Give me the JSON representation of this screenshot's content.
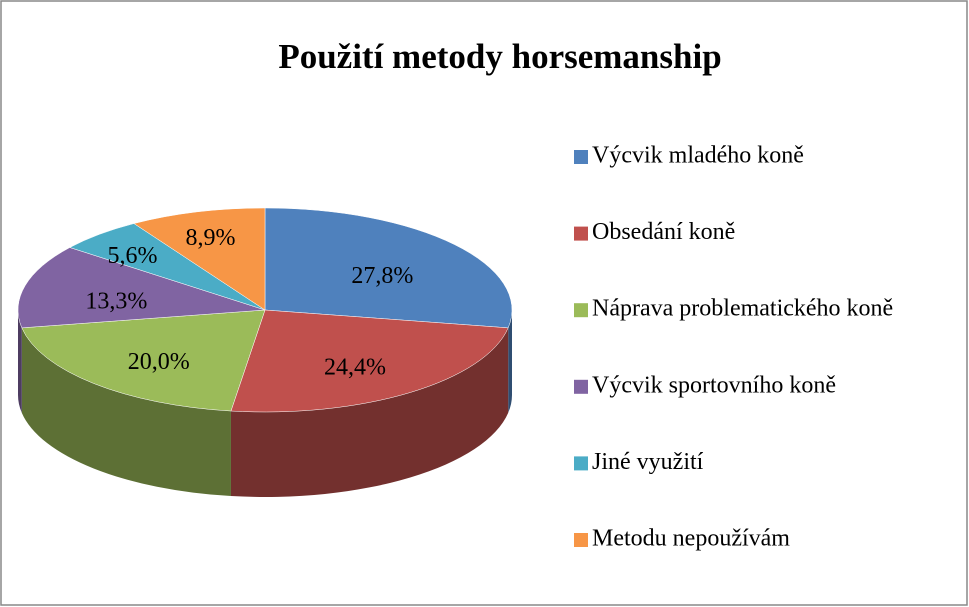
{
  "chart_data": {
    "type": "pie",
    "title": "Použití  metody horsemanship",
    "categories": [
      "Výcvik mladého koně",
      "Obsedání koně",
      "Náprava problematického koně",
      "Výcvik sportovního koně",
      "Jiné využití",
      "Metodu nepoužívám"
    ],
    "values": [
      27.8,
      24.4,
      20.0,
      13.3,
      5.6,
      8.9
    ],
    "value_labels": [
      "27,8%",
      "24,4%",
      "20,0%",
      "13,3%",
      "5,6%",
      "8,9%"
    ],
    "colors": [
      "#4f81bd",
      "#c0504d",
      "#9bbb59",
      "#8064a2",
      "#4bacc6",
      "#f79646"
    ],
    "legend": "right"
  }
}
